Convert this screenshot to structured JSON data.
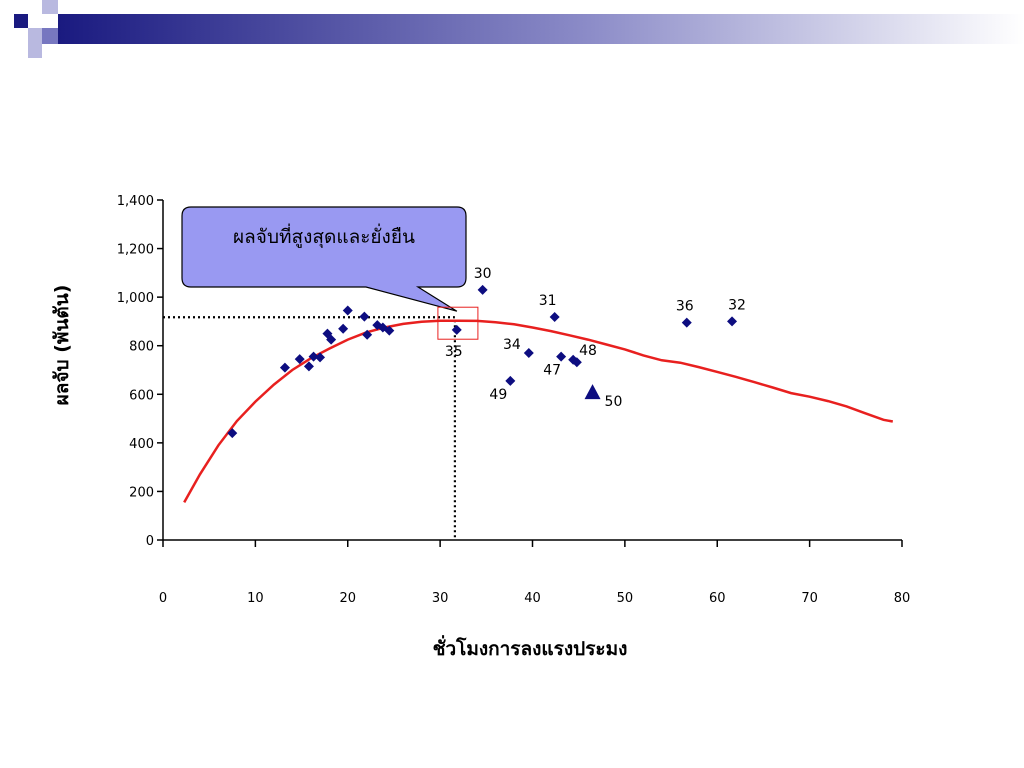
{
  "slide": {
    "accent_colors": [
      "#1a1a80",
      "#7777c0",
      "#b9b9e0"
    ]
  },
  "chart_data": {
    "type": "scatter",
    "xlabel": "ชั่วโมงการลงแรงประมง",
    "ylabel": "ผลจับ (พันตัน)",
    "xlim": [
      0,
      80
    ],
    "ylim": [
      0,
      1400
    ],
    "x_ticks": [
      "0",
      "10",
      "20",
      "30",
      "40",
      "50",
      "60",
      "70",
      "80"
    ],
    "y_ticks": [
      "0",
      "200",
      "400",
      "600",
      "800",
      "1,000",
      "1,200",
      "1,400"
    ],
    "grid": false,
    "points": [
      {
        "x": 7.5,
        "y": 440,
        "label": ""
      },
      {
        "x": 13.2,
        "y": 710,
        "label": ""
      },
      {
        "x": 14.8,
        "y": 745,
        "label": ""
      },
      {
        "x": 15.8,
        "y": 715,
        "label": ""
      },
      {
        "x": 16.3,
        "y": 755,
        "label": ""
      },
      {
        "x": 17.0,
        "y": 752,
        "label": ""
      },
      {
        "x": 17.8,
        "y": 850,
        "label": ""
      },
      {
        "x": 18.2,
        "y": 825,
        "label": ""
      },
      {
        "x": 19.5,
        "y": 870,
        "label": ""
      },
      {
        "x": 20.0,
        "y": 945,
        "label": ""
      },
      {
        "x": 21.8,
        "y": 920,
        "label": ""
      },
      {
        "x": 22.1,
        "y": 845,
        "label": ""
      },
      {
        "x": 23.2,
        "y": 885,
        "label": ""
      },
      {
        "x": 23.8,
        "y": 875,
        "label": ""
      },
      {
        "x": 24.5,
        "y": 862,
        "label": ""
      },
      {
        "x": 31.8,
        "y": 865,
        "label": "35"
      },
      {
        "x": 34.6,
        "y": 1030,
        "label": "30"
      },
      {
        "x": 37.6,
        "y": 655,
        "label": "49"
      },
      {
        "x": 39.6,
        "y": 770,
        "label": "34"
      },
      {
        "x": 42.4,
        "y": 918,
        "label": "31"
      },
      {
        "x": 43.1,
        "y": 755,
        "label": "47"
      },
      {
        "x": 44.4,
        "y": 742,
        "label": "48"
      },
      {
        "x": 44.8,
        "y": 732,
        "label": ""
      },
      {
        "x": 56.7,
        "y": 895,
        "label": "36"
      },
      {
        "x": 61.6,
        "y": 900,
        "label": "32"
      }
    ],
    "highlight_point": {
      "x": 46.5,
      "y": 605,
      "label": "50",
      "marker": "triangle"
    },
    "curve": {
      "color": "#e8201f",
      "points": [
        [
          2.3,
          155
        ],
        [
          4,
          270
        ],
        [
          6,
          390
        ],
        [
          8,
          490
        ],
        [
          10,
          570
        ],
        [
          12,
          640
        ],
        [
          14,
          700
        ],
        [
          16,
          748
        ],
        [
          18,
          788
        ],
        [
          20,
          825
        ],
        [
          22,
          855
        ],
        [
          24,
          875
        ],
        [
          26,
          890
        ],
        [
          28,
          899
        ],
        [
          30,
          903
        ],
        [
          32,
          903
        ],
        [
          34,
          902
        ],
        [
          36,
          897
        ],
        [
          38,
          888
        ],
        [
          40,
          875
        ],
        [
          42,
          860
        ],
        [
          44,
          843
        ],
        [
          46,
          825
        ],
        [
          48,
          805
        ],
        [
          50,
          785
        ],
        [
          52,
          760
        ],
        [
          54,
          740
        ],
        [
          56,
          730
        ],
        [
          58,
          712
        ],
        [
          60,
          692
        ],
        [
          62,
          672
        ],
        [
          64,
          650
        ],
        [
          66,
          628
        ],
        [
          68,
          605
        ],
        [
          70,
          590
        ],
        [
          72,
          572
        ],
        [
          74,
          550
        ],
        [
          76,
          522
        ],
        [
          78,
          495
        ],
        [
          79,
          488
        ]
      ]
    },
    "msy_marker": {
      "x": 31.6,
      "y": 905
    },
    "callout": {
      "text": "ผลจับที่สูงสุดและยั่งยืน",
      "fill": "#9999f2"
    },
    "point_color": "#0d0d80"
  }
}
